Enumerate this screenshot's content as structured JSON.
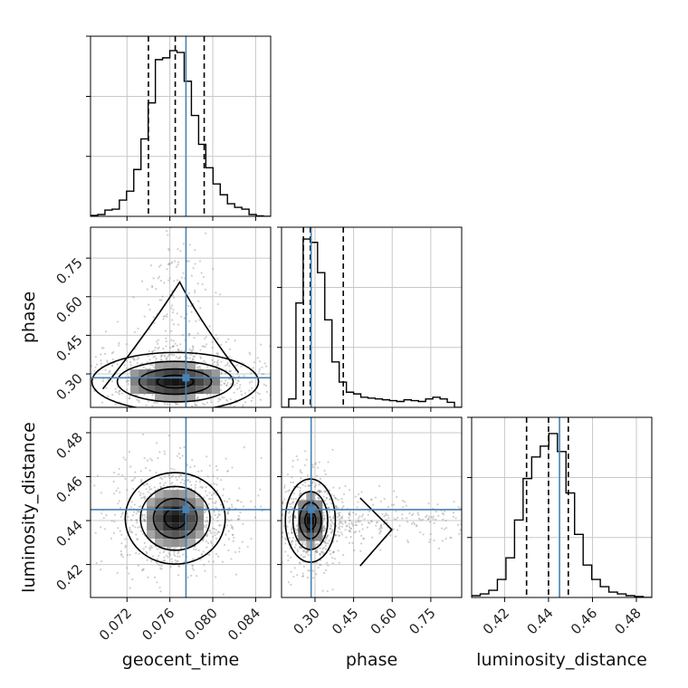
{
  "chart_data": {
    "type": "corner",
    "parameters": [
      "geocent_time",
      "phase",
      "luminosity_distance"
    ],
    "axis_labels": {
      "x": [
        "geocent_time",
        "phase",
        "luminosity_distance"
      ],
      "y": [
        "",
        "phase",
        "luminosity_distance"
      ]
    },
    "truths": {
      "geocent_time": 0.0775,
      "phase": 0.285,
      "luminosity_distance": 0.445
    },
    "truth_color": "#4682b4",
    "ranges": {
      "geocent_time": [
        0.0686,
        0.0854
      ],
      "phase": [
        0.17,
        0.87
      ],
      "luminosity_distance": [
        0.405,
        0.487
      ]
    },
    "ticks": {
      "geocent_time": [
        0.072,
        0.076,
        0.08,
        0.084
      ],
      "phase": [
        0.3,
        0.45,
        0.6,
        0.75
      ],
      "luminosity_distance": [
        0.42,
        0.44,
        0.46,
        0.48
      ]
    },
    "tick_labels": {
      "geocent_time": [
        "0.072",
        "0.076",
        "0.080",
        "0.084"
      ],
      "phase": [
        "0.30",
        "0.45",
        "0.60",
        "0.75"
      ],
      "luminosity_distance": [
        "0.42",
        "0.44",
        "0.46",
        "0.48"
      ]
    },
    "quantiles": {
      "geocent_time": [
        0.074,
        0.0765,
        0.0792
      ],
      "phase": [
        0.255,
        0.282,
        0.41
      ],
      "luminosity_distance": [
        0.43,
        0.44,
        0.449
      ]
    },
    "histograms": {
      "geocent_time": {
        "bins": [
          0.0686,
          0.0854
        ],
        "heights": [
          0.005,
          0.01,
          0.035,
          0.04,
          0.09,
          0.14,
          0.26,
          0.43,
          0.63,
          0.87,
          0.88,
          0.92,
          0.91,
          0.75,
          0.56,
          0.4,
          0.27,
          0.18,
          0.12,
          0.07,
          0.05,
          0.04,
          0.01,
          0.003,
          0.0
        ]
      },
      "phase": {
        "bins": [
          0.17,
          0.87
        ],
        "heights": [
          0.0,
          0.05,
          0.62,
          1.0,
          0.98,
          0.8,
          0.52,
          0.27,
          0.15,
          0.09,
          0.08,
          0.06,
          0.055,
          0.05,
          0.045,
          0.04,
          0.035,
          0.045,
          0.04,
          0.035,
          0.05,
          0.06,
          0.05,
          0.03,
          0.0
        ]
      },
      "luminosity_distance": {
        "bins": [
          0.405,
          0.487
        ],
        "heights": [
          0.01,
          0.02,
          0.04,
          0.1,
          0.22,
          0.43,
          0.66,
          0.78,
          0.84,
          0.91,
          0.81,
          0.58,
          0.35,
          0.18,
          0.1,
          0.06,
          0.03,
          0.02,
          0.01,
          0.005,
          0.0
        ]
      }
    },
    "hist_ylim": {
      "geocent_time": [
        0,
        1.0
      ],
      "phase": [
        0,
        1.07
      ],
      "luminosity_distance": [
        0,
        1.0
      ]
    },
    "density_centers": {
      "phase_vs_geocent_time": [
        0.0765,
        0.27
      ],
      "luminosity_distance_vs_geocent_time": [
        0.0765,
        0.441
      ],
      "luminosity_distance_vs_phase": [
        0.282,
        0.44
      ]
    },
    "grid": true
  }
}
